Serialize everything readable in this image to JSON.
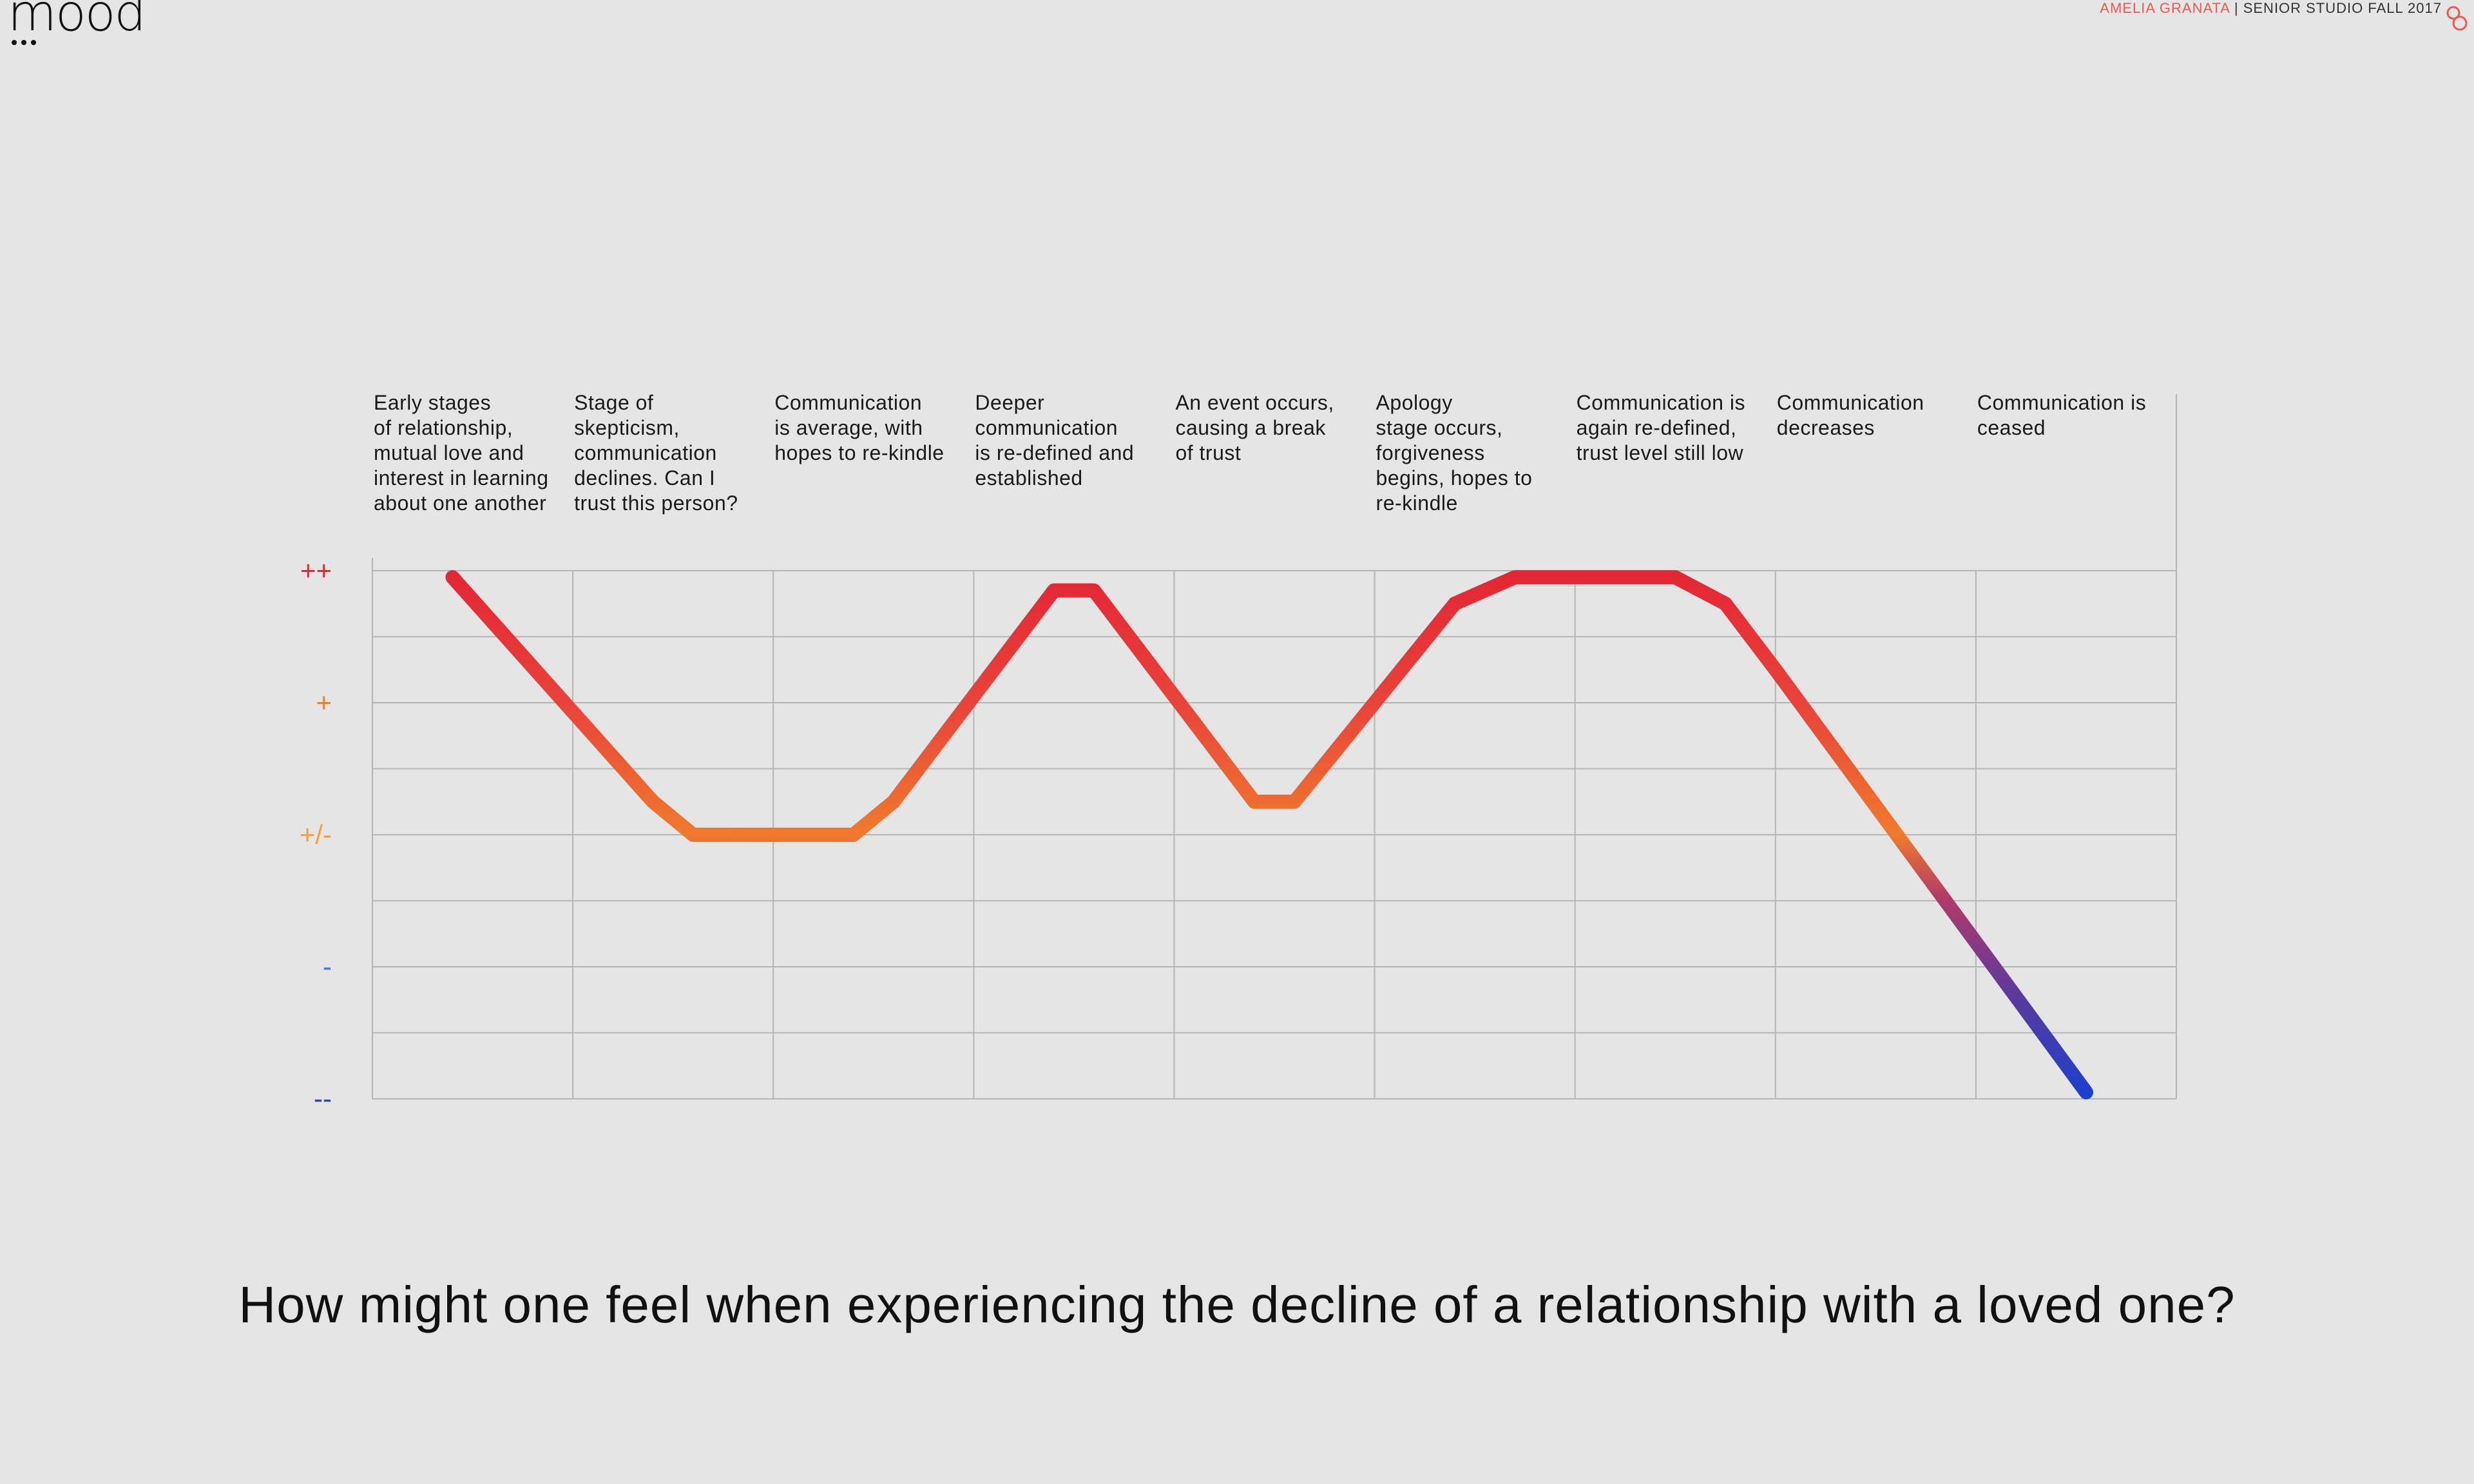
{
  "header": {
    "logo_text": "mood",
    "credit_author": "AMELIA GRANATA",
    "credit_rest": " | SENIOR STUDIO FALL 2017"
  },
  "colors": {
    "background": "#e5e5e5",
    "grid": "#b5b5b5",
    "accent": "#e85a4f",
    "level_pp": "#e32636",
    "level_p": "#f07d2a",
    "level_pm": "#f2a03d",
    "level_m": "#3a7bd5",
    "level_mm": "#1a3fbf"
  },
  "chart_data": {
    "type": "line",
    "title": "",
    "xlabel": "",
    "ylabel": "",
    "y_levels": [
      "++",
      "+",
      "+/-",
      "-",
      "--"
    ],
    "ylim": [
      -2,
      2
    ],
    "categories": [
      "Early stages of relationship, mutual love and interest in learning about one another",
      "Stage of skepticism, communication declines. Can I trust this person?",
      "Communication is average, with hopes to re-kindle",
      "Deeper communication is re-defined and established",
      "An event occurs, causing a break of trust",
      "Apology stage occurs, forgiveness begins, hopes to re-kindle",
      "Communication is again re-defined, trust level still low",
      "Communication decreases",
      "Communication is ceased"
    ],
    "category_lines": [
      [
        "Early stages",
        "of relationship,",
        "mutual love and",
        "interest in learning",
        "about one another"
      ],
      [
        "Stage of",
        "skepticism,",
        "communication",
        "declines. Can I",
        "trust this person?"
      ],
      [
        "Communication",
        "is average, with",
        "hopes to re-kindle"
      ],
      [
        "Deeper",
        "communication",
        "is re-defined and",
        "established"
      ],
      [
        "An event occurs,",
        "causing a break",
        "of trust"
      ],
      [
        "Apology",
        "stage occurs,",
        "forgiveness",
        "begins, hopes to",
        "re-kindle"
      ],
      [
        "Communication is",
        "again re-defined,",
        "trust level still low"
      ],
      [
        "Communication",
        "decreases"
      ],
      [
        "Communication is",
        "ceased"
      ]
    ],
    "series": [
      {
        "x": [
          0.4,
          1.4,
          1.6,
          2.4,
          2.6,
          3.4,
          3.6,
          4.4,
          4.6,
          5.4,
          5.7,
          6.5,
          6.75,
          7.0,
          8.55
        ],
        "y": [
          1.95,
          0.25,
          0.0,
          0.0,
          0.25,
          1.85,
          1.85,
          0.25,
          0.25,
          1.75,
          1.95,
          1.95,
          1.75,
          1.25,
          -1.95
        ]
      }
    ],
    "grid": true,
    "xlim": [
      0,
      9
    ]
  },
  "question": "How might one feel when experiencing the decline of a relationship with a loved one?"
}
